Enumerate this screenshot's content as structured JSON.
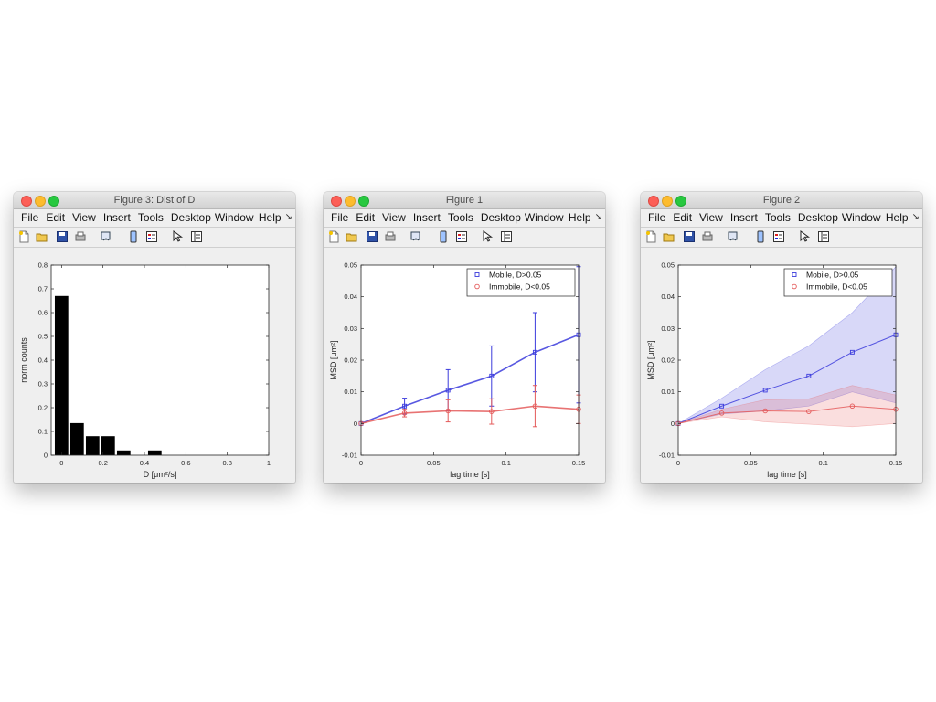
{
  "menu": [
    "File",
    "Edit",
    "View",
    "Insert",
    "Tools",
    "Desktop",
    "Window",
    "Help"
  ],
  "menu_arrow": "↘",
  "toolbar_icons": [
    "new-figure-icon",
    "open-file-icon",
    "save-icon",
    "print-icon",
    "link-plot-icon",
    "insert-colorbar-icon",
    "insert-legend-icon",
    "edit-plot-pointer-icon",
    "property-inspector-icon"
  ],
  "windows": [
    {
      "title": "Figure 3: Dist of D"
    },
    {
      "title": "Figure 1"
    },
    {
      "title": "Figure 2"
    }
  ],
  "colors": {
    "mobile": "#3b3bdc",
    "immobile": "#e45a5a",
    "bars": "#000000"
  },
  "chart_data": [
    {
      "type": "bar",
      "xlabel": "D [μm²/s]",
      "ylabel": "norm counts",
      "xlim": [
        -0.05,
        1
      ],
      "ylim": [
        0,
        0.8
      ],
      "xticks": [
        0,
        0.2,
        0.4,
        0.6,
        0.8,
        1
      ],
      "xtick_labels": [
        "0",
        "0.2",
        "0.4",
        "0.6",
        "0.8",
        "1"
      ],
      "yticks": [
        0,
        0.1,
        0.2,
        0.3,
        0.4,
        0.5,
        0.6,
        0.7,
        0.8
      ],
      "ytick_labels": [
        "0",
        "0.1",
        "0.2",
        "0.3",
        "0.4",
        "0.5",
        "0.6",
        "0.7",
        "0.8"
      ],
      "bin_width": 0.065,
      "x": [
        0.0,
        0.075,
        0.15,
        0.225,
        0.3,
        0.375,
        0.45
      ],
      "values": [
        0.67,
        0.135,
        0.08,
        0.08,
        0.02,
        0.0,
        0.02
      ],
      "grid": false
    },
    {
      "type": "line",
      "xlabel": "lag time [s]",
      "ylabel": "MSD [μm²]",
      "xlim": [
        0,
        0.15
      ],
      "ylim": [
        -0.01,
        0.05
      ],
      "xticks": [
        0,
        0.05,
        0.1,
        0.15
      ],
      "xtick_labels": [
        "0",
        "0.05",
        "0.1",
        "0.15"
      ],
      "yticks": [
        -0.01,
        0,
        0.01,
        0.02,
        0.03,
        0.04,
        0.05
      ],
      "ytick_labels": [
        "-0.01",
        "0",
        "0.01",
        "0.02",
        "0.03",
        "0.04",
        "0.05"
      ],
      "x": [
        0,
        0.03,
        0.06,
        0.09,
        0.12,
        0.15
      ],
      "error_style": "errorbar",
      "legend_position": "top-right",
      "series": [
        {
          "name": "Mobile, D>0.05",
          "marker": "square",
          "color": "#3b3bdc",
          "values": [
            0,
            0.0055,
            0.0105,
            0.015,
            0.0225,
            0.028
          ],
          "errors": [
            0,
            0.0025,
            0.0065,
            0.0095,
            0.0125,
            0.0215
          ]
        },
        {
          "name": "Immobile, D<0.05",
          "marker": "circle",
          "color": "#e45a5a",
          "values": [
            0,
            0.0033,
            0.004,
            0.0038,
            0.0055,
            0.0045
          ],
          "errors": [
            0,
            0.0012,
            0.0035,
            0.004,
            0.0065,
            0.0045
          ]
        }
      ],
      "grid": false
    },
    {
      "type": "area",
      "xlabel": "lag time [s]",
      "ylabel": "MSD [μm²]",
      "xlim": [
        0,
        0.15
      ],
      "ylim": [
        -0.01,
        0.05
      ],
      "xticks": [
        0,
        0.05,
        0.1,
        0.15
      ],
      "xtick_labels": [
        "0",
        "0.05",
        "0.1",
        "0.15"
      ],
      "yticks": [
        -0.01,
        0,
        0.01,
        0.02,
        0.03,
        0.04,
        0.05
      ],
      "ytick_labels": [
        "-0.01",
        "0",
        "0.01",
        "0.02",
        "0.03",
        "0.04",
        "0.05"
      ],
      "x": [
        0,
        0.03,
        0.06,
        0.09,
        0.12,
        0.15
      ],
      "error_style": "shaded",
      "legend_position": "top-right",
      "series": [
        {
          "name": "Mobile, D>0.05",
          "marker": "square",
          "color": "#3b3bdc",
          "values": [
            0,
            0.0055,
            0.0105,
            0.015,
            0.0225,
            0.028
          ],
          "errors": [
            0,
            0.0025,
            0.0065,
            0.0095,
            0.0125,
            0.0215
          ]
        },
        {
          "name": "Immobile, D<0.05",
          "marker": "circle",
          "color": "#e45a5a",
          "values": [
            0,
            0.0033,
            0.004,
            0.0038,
            0.0055,
            0.0045
          ],
          "errors": [
            0,
            0.0012,
            0.0035,
            0.004,
            0.0065,
            0.0045
          ]
        }
      ],
      "grid": false
    }
  ]
}
